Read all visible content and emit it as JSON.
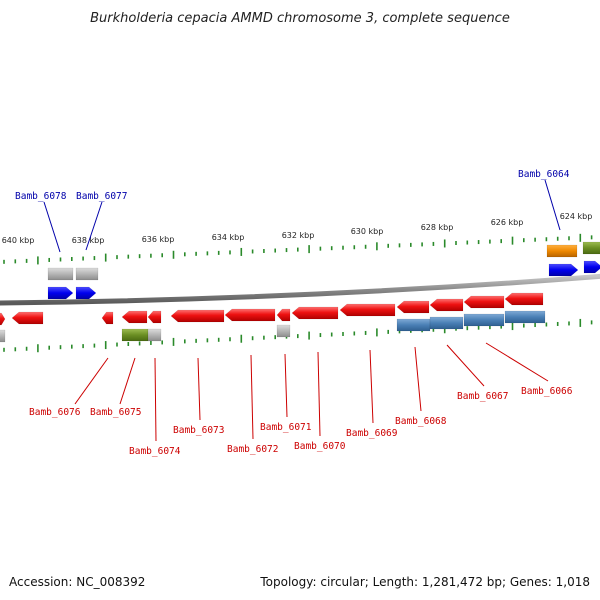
{
  "title": "Burkholderia cepacia AMMD chromosome 3, complete sequence",
  "footer": {
    "accession": "Accession: NC_008392",
    "topology": "Topology: circular; Length: 1,281,472 bp; Genes: 1,018"
  },
  "colors": {
    "backbone": "#8a8a8a",
    "tick": "#2a8a2a",
    "gene_red": "#ee1111",
    "gene_blue": "#0000ee",
    "gene_grey": "#b4b4b4",
    "gene_orange": "#ee8800",
    "gene_olive": "#6b8e23",
    "gene_steelblue": "#4a7fb5",
    "label_red": "#cc0000",
    "label_blue": "#0000aa"
  },
  "kbp_labels": [
    "640 kbp",
    "638 kbp",
    "636 kbp",
    "634 kbp",
    "632 kbp",
    "630 kbp",
    "628 kbp",
    "626 kbp",
    "624 kbp"
  ],
  "gene_labels_top": [
    "Bamb_6078",
    "Bamb_6077",
    "Bamb_6064"
  ],
  "gene_labels_bottom": [
    "Bamb_6076",
    "Bamb_6075",
    "Bamb_6074",
    "Bamb_6073",
    "Bamb_6072",
    "Bamb_6071",
    "Bamb_6070",
    "Bamb_6069",
    "Bamb_6068",
    "Bamb_6067",
    "Bamb_6066"
  ]
}
